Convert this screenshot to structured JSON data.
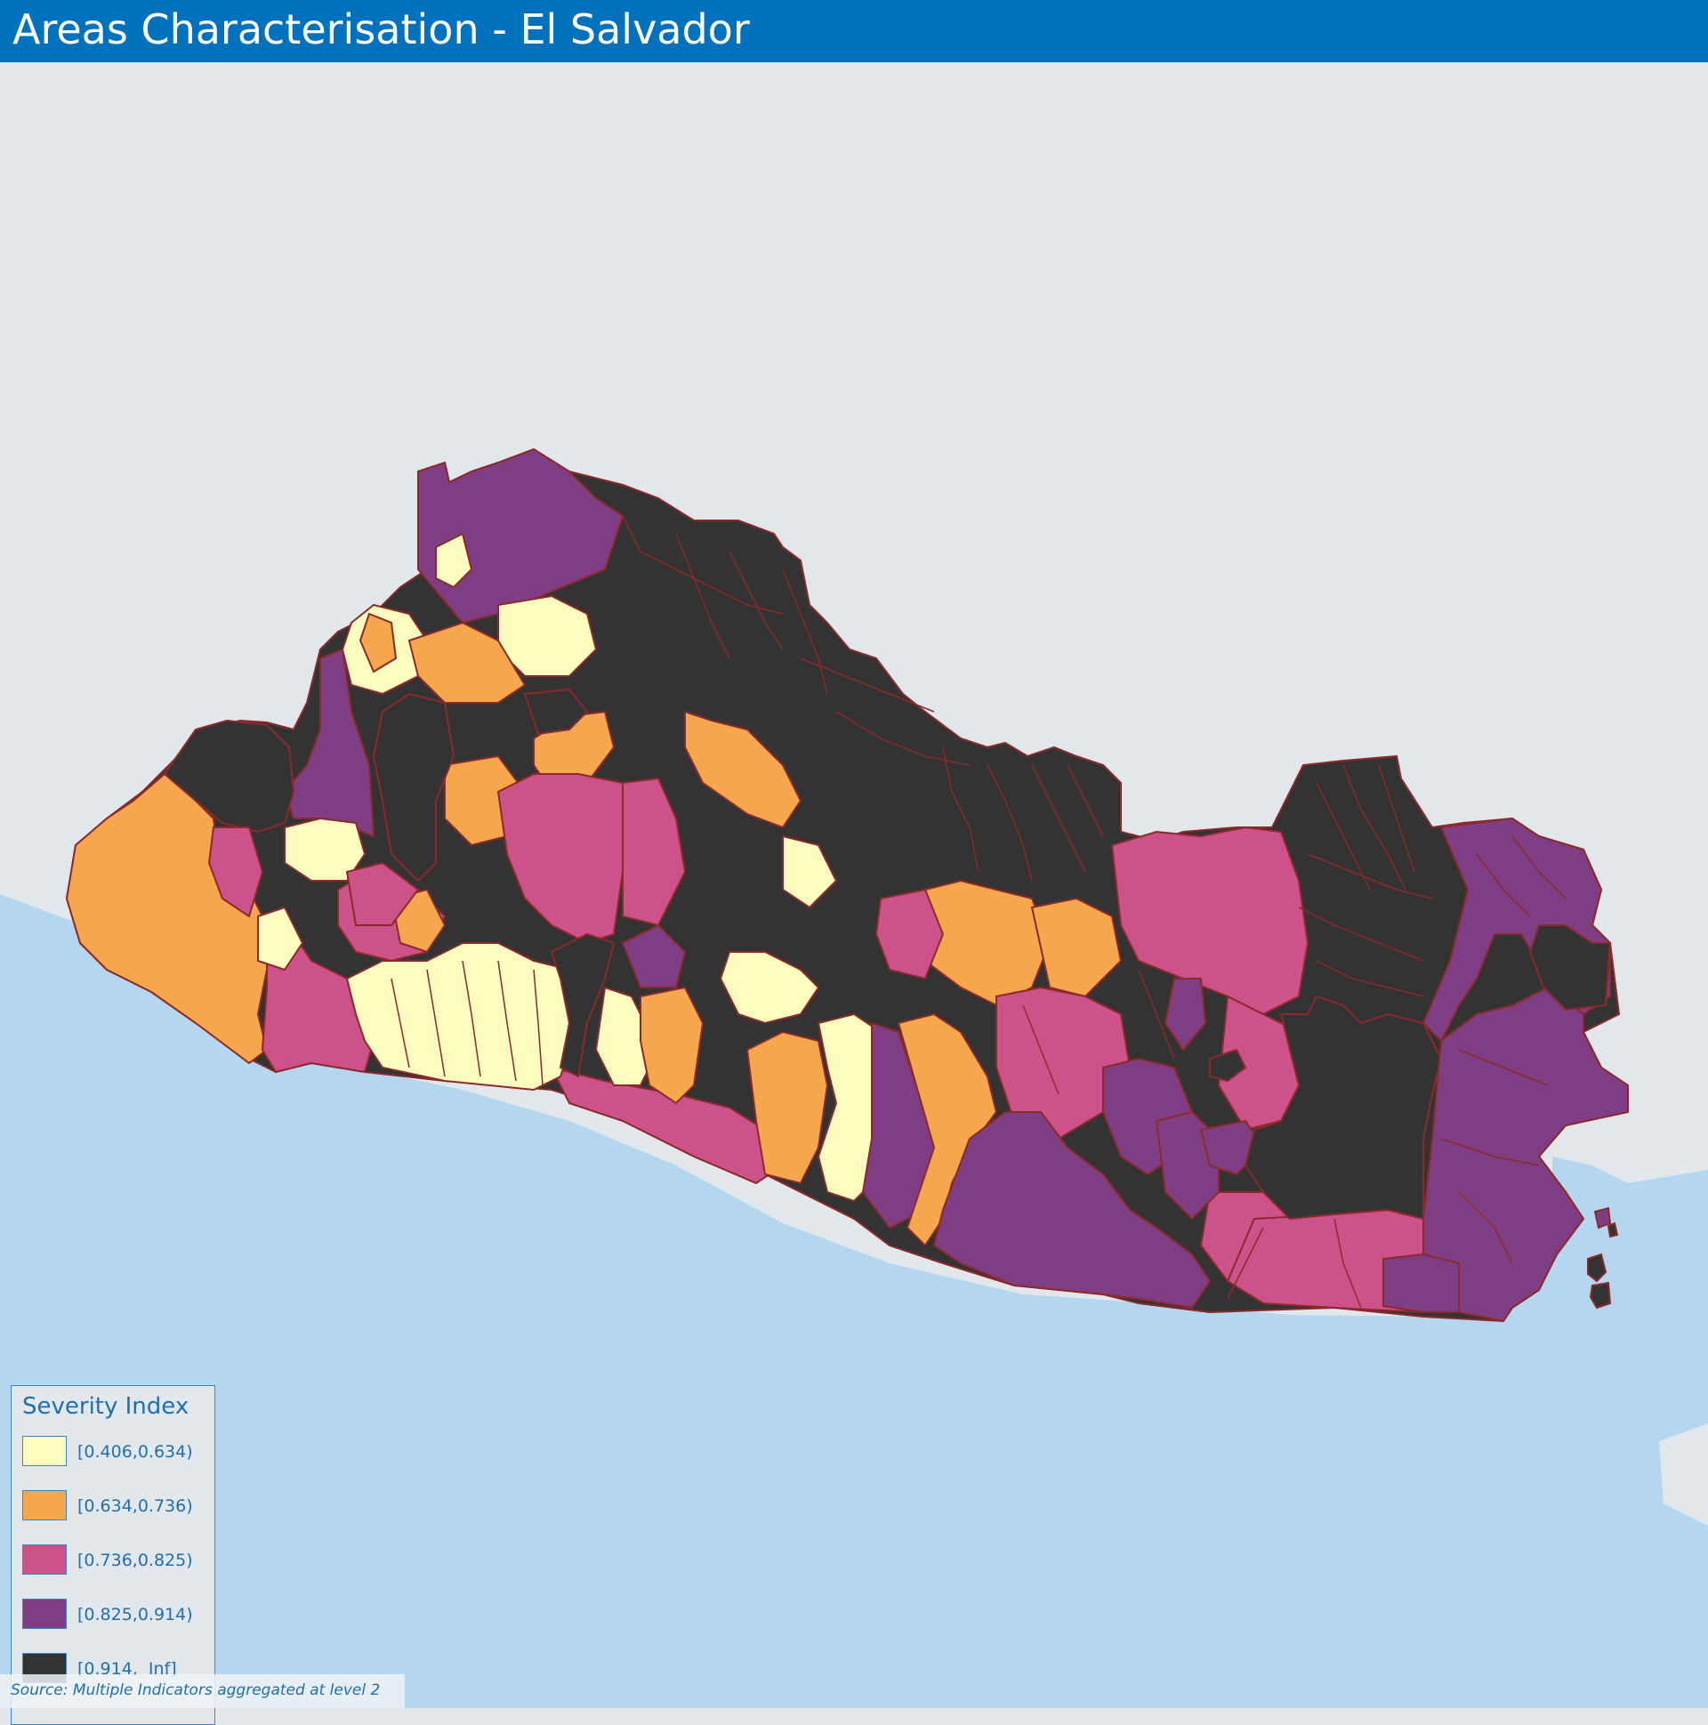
{
  "header": {
    "title": "Areas Characterisation - El Salvador"
  },
  "legend": {
    "title": "Severity Index",
    "items": [
      {
        "label": "[0.406,0.634)",
        "color": "#fcfdbf"
      },
      {
        "label": "[0.634,0.736)",
        "color": "#f6a64c"
      },
      {
        "label": "[0.736,0.825)",
        "color": "#cd528a"
      },
      {
        "label": "[0.825,0.914)",
        "color": "#7f3e84"
      },
      {
        "label": "[0.914,  Inf]",
        "color": "#333333"
      }
    ]
  },
  "footer": {
    "source": "Source: Multiple Indicators aggregated at level 2"
  },
  "map": {
    "land_color": "#e2e7ec",
    "sea_color": "#b4d7ef",
    "border_color": "#8b2a2a"
  }
}
